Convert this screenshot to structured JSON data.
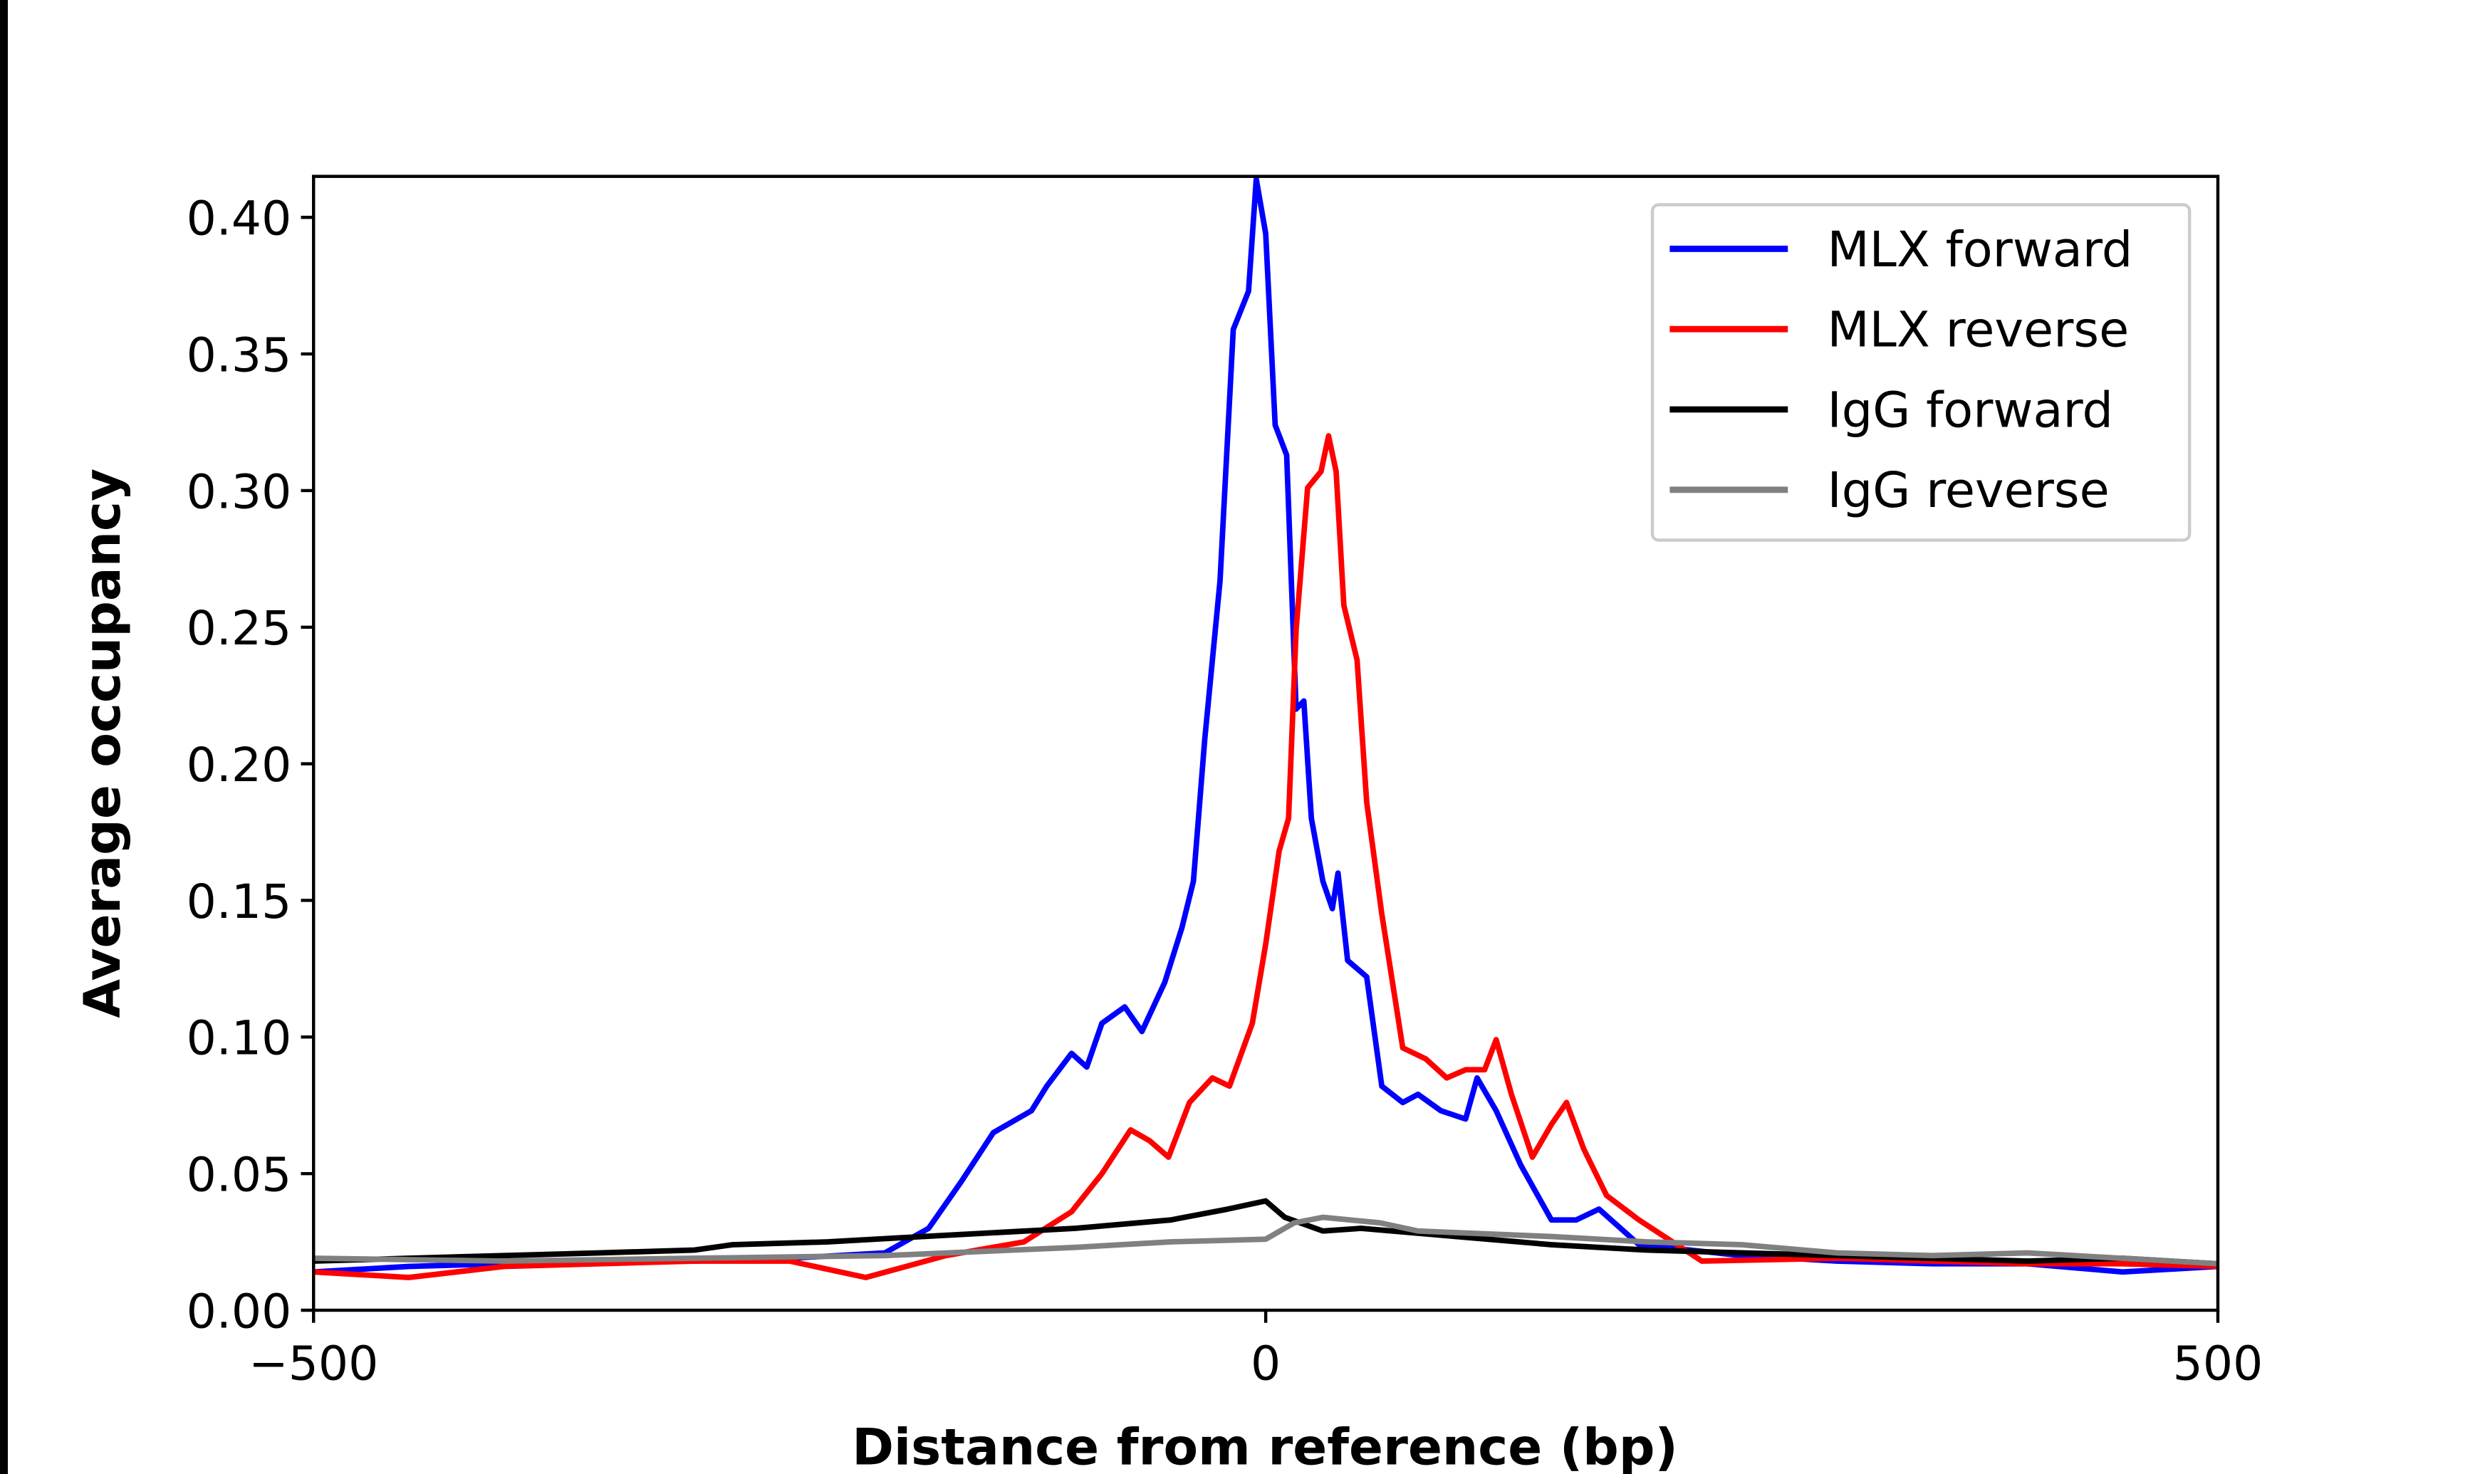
{
  "chart_data": {
    "type": "line",
    "title": "",
    "xlabel": "Distance from reference (bp)",
    "ylabel": "Average occupancy",
    "xlim": [
      -500,
      500
    ],
    "ylim": [
      0,
      0.415
    ],
    "xticks": [
      -500,
      0,
      500
    ],
    "xtick_labels": [
      "−500",
      "0",
      "500"
    ],
    "yticks": [
      0,
      0.05,
      0.1,
      0.15,
      0.2,
      0.25,
      0.3,
      0.35,
      0.4
    ],
    "ytick_labels": [
      "0.00",
      "0.05",
      "0.10",
      "0.15",
      "0.20",
      "0.25",
      "0.30",
      "0.35",
      "0.40"
    ],
    "grid": false,
    "legend_position": "top-right",
    "series": [
      {
        "name": "MLX forward",
        "color": "#0000ff",
        "x": [
          -500,
          -450,
          -400,
          -350,
          -300,
          -250,
          -200,
          -177,
          -160,
          -143,
          -123,
          -115,
          -102,
          -94,
          -86,
          -74,
          -65,
          -53,
          -44,
          -38,
          -32,
          -24,
          -17,
          -9,
          -5,
          0,
          5,
          11,
          16,
          20,
          24,
          30,
          35,
          38,
          43,
          53,
          61,
          72,
          80,
          92,
          105,
          111,
          121,
          134,
          150,
          163,
          175,
          196,
          250,
          300,
          350,
          400,
          450,
          500
        ],
        "y": [
          0.014,
          0.016,
          0.017,
          0.018,
          0.018,
          0.019,
          0.021,
          0.03,
          0.047,
          0.065,
          0.073,
          0.082,
          0.094,
          0.089,
          0.105,
          0.111,
          0.102,
          0.12,
          0.14,
          0.157,
          0.209,
          0.267,
          0.359,
          0.373,
          0.414,
          0.394,
          0.324,
          0.313,
          0.22,
          0.223,
          0.18,
          0.157,
          0.147,
          0.16,
          0.128,
          0.122,
          0.082,
          0.076,
          0.079,
          0.073,
          0.07,
          0.085,
          0.073,
          0.053,
          0.033,
          0.033,
          0.037,
          0.024,
          0.02,
          0.018,
          0.017,
          0.017,
          0.014,
          0.016
        ]
      },
      {
        "name": "MLX reverse",
        "color": "#ff0000",
        "x": [
          -500,
          -450,
          -400,
          -350,
          -300,
          -250,
          -210,
          -168,
          -127,
          -102,
          -86,
          -71,
          -61,
          -51,
          -40,
          -28,
          -19,
          -7,
          0,
          7,
          12,
          16,
          22,
          29,
          33,
          37,
          41,
          48,
          53,
          61,
          72,
          84,
          95,
          105,
          115,
          121,
          129,
          140,
          150,
          158,
          167,
          179,
          196,
          229,
          300,
          350,
          400,
          450,
          500
        ],
        "y": [
          0.014,
          0.012,
          0.016,
          0.017,
          0.018,
          0.018,
          0.012,
          0.02,
          0.025,
          0.036,
          0.05,
          0.066,
          0.062,
          0.056,
          0.076,
          0.085,
          0.082,
          0.105,
          0.134,
          0.168,
          0.18,
          0.249,
          0.301,
          0.307,
          0.32,
          0.307,
          0.258,
          0.238,
          0.186,
          0.145,
          0.096,
          0.092,
          0.085,
          0.088,
          0.088,
          0.099,
          0.079,
          0.056,
          0.068,
          0.076,
          0.059,
          0.042,
          0.033,
          0.018,
          0.019,
          0.018,
          0.017,
          0.017,
          0.016
        ]
      },
      {
        "name": "IgG forward",
        "color": "#000000",
        "x": [
          -500,
          -450,
          -400,
          -350,
          -300,
          -280,
          -230,
          -180,
          -100,
          -50,
          -20,
          0,
          10,
          30,
          50,
          100,
          150,
          200,
          300,
          400,
          450,
          500
        ],
        "y": [
          0.018,
          0.019,
          0.02,
          0.021,
          0.022,
          0.024,
          0.025,
          0.027,
          0.03,
          0.033,
          0.037,
          0.04,
          0.034,
          0.029,
          0.03,
          0.027,
          0.024,
          0.022,
          0.02,
          0.018,
          0.019,
          0.017
        ]
      },
      {
        "name": "IgG reverse",
        "color": "#808080",
        "x": [
          -500,
          -400,
          -300,
          -200,
          -100,
          -50,
          0,
          15,
          30,
          60,
          80,
          150,
          200,
          250,
          300,
          350,
          400,
          500
        ],
        "y": [
          0.019,
          0.018,
          0.019,
          0.02,
          0.023,
          0.025,
          0.026,
          0.032,
          0.034,
          0.032,
          0.029,
          0.027,
          0.025,
          0.024,
          0.021,
          0.02,
          0.021,
          0.017
        ]
      }
    ]
  }
}
